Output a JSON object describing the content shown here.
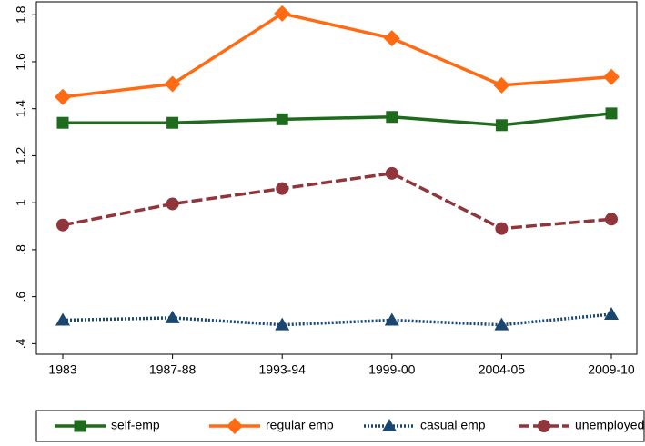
{
  "chart_data": {
    "type": "line",
    "categories": [
      "1983",
      "1987-88",
      "1993-94",
      "1999-00",
      "2004-05",
      "2009-10"
    ],
    "ylim": [
      0.355,
      1.855
    ],
    "yticks": [
      {
        "value": 0.4,
        "label": ".4"
      },
      {
        "value": 0.6,
        "label": ".6"
      },
      {
        "value": 0.8,
        "label": ".8"
      },
      1,
      1.2,
      1.4,
      1.6,
      1.8
    ],
    "legend": "bottom",
    "series": [
      {
        "name": "self-emp",
        "color": "#1e6b1e",
        "marker": "square",
        "dash": "solid",
        "values": [
          1.34,
          1.34,
          1.355,
          1.365,
          1.33,
          1.38
        ]
      },
      {
        "name": "regular emp",
        "color": "#ff6a13",
        "marker": "diamond",
        "dash": "solid",
        "values": [
          1.45,
          1.505,
          1.805,
          1.7,
          1.5,
          1.535
        ]
      },
      {
        "name": "casual emp",
        "color": "#1a476f",
        "marker": "triangle",
        "dash": "dot",
        "values": [
          0.5,
          0.51,
          0.48,
          0.5,
          0.48,
          0.525
        ]
      },
      {
        "name": "unemployed",
        "color": "#90353b",
        "marker": "circle",
        "dash": "dash",
        "values": [
          0.905,
          0.995,
          1.06,
          1.125,
          0.89,
          0.93
        ]
      }
    ]
  }
}
